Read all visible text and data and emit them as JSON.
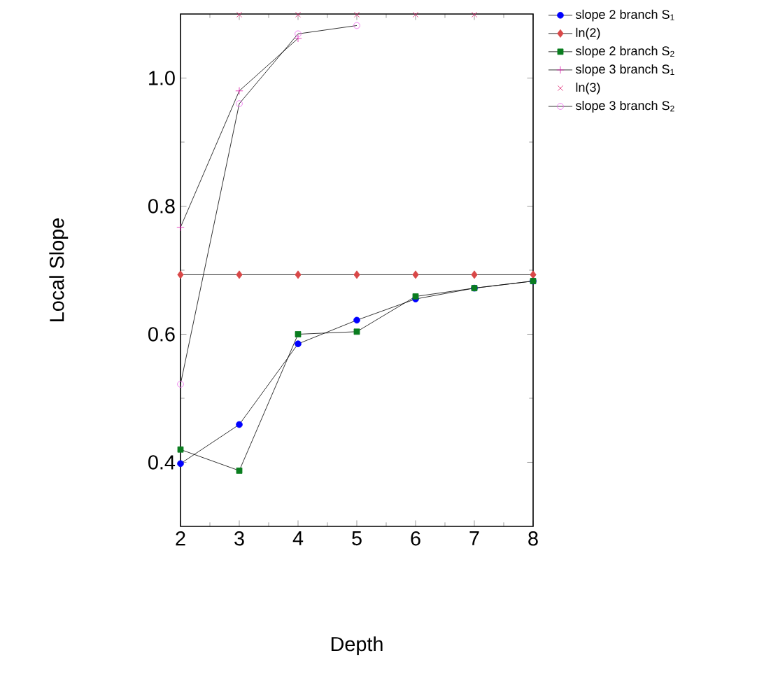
{
  "chart_data": {
    "type": "line",
    "xlabel": "Depth",
    "ylabel": "Local Slope",
    "xlim": [
      2,
      8
    ],
    "xticks": [
      2,
      3,
      4,
      5,
      6,
      7,
      8
    ],
    "ylim": [
      0.3,
      1.1
    ],
    "yticks": [
      {
        "value": 0.4,
        "label": "0.4"
      },
      {
        "value": 0.6,
        "label": "0.6"
      },
      {
        "value": 0.8,
        "label": "0.8"
      },
      {
        "value": 1.0,
        "label": "1.0"
      }
    ],
    "grid": false,
    "legend": "right",
    "series": [
      {
        "name": "slope 2 branch S$_{1}$",
        "color": "#0000ff",
        "marker": "circle",
        "line_style": "solid",
        "x": [
          2,
          3,
          4,
          5,
          6,
          7,
          8
        ],
        "values": [
          0.398,
          0.459,
          0.585,
          0.622,
          0.655,
          0.672,
          0.683
        ]
      },
      {
        "name": "ln(2)",
        "color": "#d94848",
        "marker": "diamond",
        "line_style": "solid",
        "x": [
          2,
          3,
          4,
          5,
          6,
          7,
          8
        ],
        "values": [
          0.693,
          0.693,
          0.693,
          0.693,
          0.693,
          0.693,
          0.693
        ]
      },
      {
        "name": "slope 2 branch S$_{2}$",
        "color": "#0a7d1f",
        "marker": "square",
        "line_style": "solid",
        "x": [
          2,
          3,
          4,
          5,
          6,
          7,
          8
        ],
        "values": [
          0.42,
          0.387,
          0.6,
          0.604,
          0.659,
          0.672,
          0.683
        ]
      },
      {
        "name": "slope 3 branch S$_{1}$",
        "color": "#e020b0",
        "marker": "plus",
        "line_style": "solid",
        "x": [
          2,
          3,
          4
        ],
        "values": [
          0.767,
          0.98,
          1.062
        ]
      },
      {
        "name": "ln(3)",
        "type": "scatter",
        "color": "#e0206e",
        "marker": "x",
        "x": [
          3,
          4,
          5,
          6,
          7
        ],
        "values": [
          1.099,
          1.099,
          1.099,
          1.099,
          1.099
        ]
      },
      {
        "name": "slope 3 branch S$_{2}$",
        "color": "#ee66ee",
        "marker": "open circle",
        "line_style": "solid",
        "x": [
          2,
          3,
          4,
          5
        ],
        "values": [
          0.522,
          0.96,
          1.069,
          1.082
        ]
      }
    ]
  }
}
